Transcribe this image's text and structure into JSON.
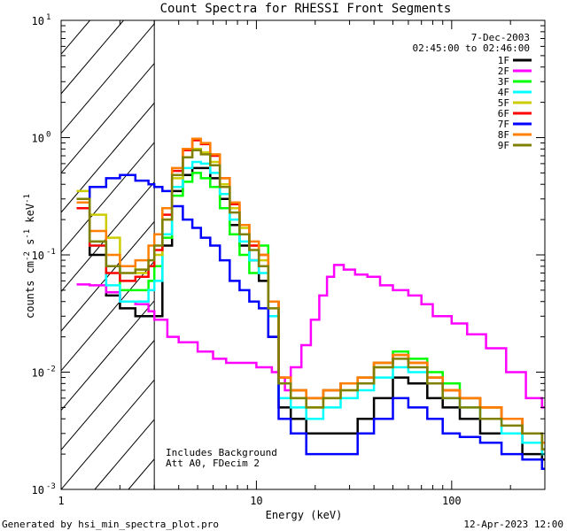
{
  "chart_data": {
    "type": "line",
    "title": "Count Spectra for RHESSI Front Segments",
    "xlabel": "Energy (keV)",
    "ylabel_main": "counts cm",
    "ylabel_exp1": "-2",
    "ylabel_mid": " s",
    "ylabel_exp2": "-1",
    "ylabel_end": " keV",
    "ylabel_exp3": "-1",
    "x_scale": "log",
    "y_scale": "log",
    "xlim": [
      1,
      300
    ],
    "ylim": [
      0.001,
      10
    ],
    "x_ticks": [
      {
        "value": 1,
        "label": "1"
      },
      {
        "value": 10,
        "label": "10"
      },
      {
        "value": 100,
        "label": "100"
      }
    ],
    "y_ticks": [
      {
        "value": 0.001,
        "base": "10",
        "exp": "-3"
      },
      {
        "value": 0.01,
        "base": "10",
        "exp": "-2"
      },
      {
        "value": 0.1,
        "base": "10",
        "exp": "-1"
      },
      {
        "value": 1,
        "base": "10",
        "exp": "0"
      },
      {
        "value": 10,
        "base": "10",
        "exp": "1"
      }
    ],
    "hatched_region": [
      1,
      3
    ],
    "date": "7-Dec-2003",
    "time_range": "02:45:00 to 02:46:00",
    "annotations": [
      "Includes Background",
      "Att A0, FDecim 2"
    ],
    "series": [
      {
        "name": "1F",
        "color": "#000000",
        "x": [
          1.2,
          1.4,
          1.7,
          2.0,
          2.4,
          2.8,
          3.0,
          3.3,
          3.7,
          4.2,
          4.7,
          5.2,
          5.8,
          6.5,
          7.3,
          8.2,
          9.2,
          10.3,
          11.5,
          13,
          15,
          18,
          22,
          27,
          33,
          40,
          50,
          60,
          75,
          90,
          110,
          140,
          180,
          230,
          290
        ],
        "y": [
          0.25,
          0.1,
          0.045,
          0.035,
          0.03,
          0.03,
          0.03,
          0.12,
          0.35,
          0.48,
          0.55,
          0.55,
          0.45,
          0.3,
          0.18,
          0.12,
          0.09,
          0.06,
          0.02,
          0.005,
          0.004,
          0.003,
          0.003,
          0.003,
          0.004,
          0.006,
          0.009,
          0.008,
          0.006,
          0.005,
          0.004,
          0.003,
          0.003,
          0.002,
          0.0018
        ]
      },
      {
        "name": "2F",
        "color": "#ff00ff",
        "x": [
          1.2,
          1.4,
          1.7,
          2.0,
          2.4,
          2.8,
          3.0,
          3.5,
          4.0,
          5,
          6,
          7,
          8,
          9,
          10,
          11,
          12,
          13,
          14,
          15,
          17,
          19,
          21,
          23,
          25,
          28,
          32,
          37,
          43,
          50,
          60,
          70,
          80,
          100,
          120,
          150,
          190,
          240,
          290
        ],
        "y": [
          0.056,
          0.055,
          0.048,
          0.04,
          0.038,
          0.033,
          0.028,
          0.02,
          0.018,
          0.015,
          0.013,
          0.012,
          0.012,
          0.012,
          0.011,
          0.011,
          0.01,
          0.009,
          0.007,
          0.011,
          0.017,
          0.028,
          0.045,
          0.065,
          0.082,
          0.075,
          0.068,
          0.065,
          0.055,
          0.05,
          0.045,
          0.038,
          0.03,
          0.026,
          0.021,
          0.016,
          0.01,
          0.006,
          0.005
        ]
      },
      {
        "name": "3F",
        "color": "#00ff00",
        "x": [
          1.2,
          1.4,
          1.7,
          2.0,
          2.4,
          2.8,
          3.0,
          3.3,
          3.7,
          4.2,
          4.7,
          5.2,
          5.8,
          6.5,
          7.3,
          8.2,
          9.2,
          10.3,
          11.5,
          13,
          15,
          18,
          22,
          27,
          33,
          40,
          50,
          60,
          75,
          90,
          110,
          140,
          180,
          230,
          290
        ],
        "y": [
          0.3,
          0.13,
          0.08,
          0.05,
          0.05,
          0.06,
          0.08,
          0.14,
          0.32,
          0.42,
          0.5,
          0.45,
          0.38,
          0.25,
          0.15,
          0.1,
          0.07,
          0.12,
          0.03,
          0.008,
          0.007,
          0.006,
          0.007,
          0.008,
          0.009,
          0.012,
          0.015,
          0.013,
          0.01,
          0.008,
          0.006,
          0.005,
          0.004,
          0.003,
          0.002
        ]
      },
      {
        "name": "4F",
        "color": "#00ffff",
        "x": [
          1.2,
          1.4,
          1.7,
          2.0,
          2.4,
          2.8,
          3.0,
          3.3,
          3.7,
          4.2,
          4.7,
          5.2,
          5.8,
          6.5,
          7.3,
          8.2,
          9.2,
          10.3,
          11.5,
          13,
          15,
          18,
          22,
          27,
          33,
          40,
          50,
          60,
          75,
          90,
          110,
          140,
          180,
          230,
          290
        ],
        "y": [
          0.28,
          0.12,
          0.055,
          0.04,
          0.04,
          0.05,
          0.06,
          0.15,
          0.38,
          0.55,
          0.62,
          0.6,
          0.5,
          0.33,
          0.2,
          0.13,
          0.09,
          0.07,
          0.03,
          0.006,
          0.005,
          0.004,
          0.005,
          0.006,
          0.007,
          0.009,
          0.011,
          0.01,
          0.008,
          0.006,
          0.005,
          0.004,
          0.003,
          0.0025,
          0.002
        ]
      },
      {
        "name": "5F",
        "color": "#cccc00",
        "x": [
          1.2,
          1.4,
          1.7,
          2.0,
          2.4,
          2.8,
          3.0,
          3.3,
          3.7,
          4.2,
          4.7,
          5.2,
          5.8,
          6.5,
          7.3,
          8.2,
          9.2,
          10.3,
          11.5,
          13,
          15,
          18,
          22,
          27,
          33,
          40,
          50,
          60,
          75,
          90,
          110,
          140,
          180,
          230,
          290
        ],
        "y": [
          0.35,
          0.22,
          0.14,
          0.08,
          0.07,
          0.08,
          0.1,
          0.2,
          0.45,
          0.68,
          0.8,
          0.75,
          0.62,
          0.4,
          0.25,
          0.17,
          0.12,
          0.09,
          0.04,
          0.008,
          0.006,
          0.005,
          0.006,
          0.007,
          0.008,
          0.011,
          0.014,
          0.012,
          0.009,
          0.007,
          0.006,
          0.005,
          0.004,
          0.003,
          0.0025
        ]
      },
      {
        "name": "6F",
        "color": "#ff0000",
        "x": [
          1.2,
          1.4,
          1.7,
          2.0,
          2.4,
          2.8,
          3.0,
          3.3,
          3.7,
          4.2,
          4.7,
          5.2,
          5.8,
          6.5,
          7.3,
          8.2,
          9.2,
          10.3,
          11.5,
          13,
          15,
          18,
          22,
          27,
          33,
          40,
          50,
          60,
          75,
          90,
          110,
          140,
          180,
          230,
          290
        ],
        "y": [
          0.25,
          0.12,
          0.07,
          0.06,
          0.065,
          0.08,
          0.11,
          0.22,
          0.52,
          0.78,
          0.95,
          0.88,
          0.7,
          0.45,
          0.27,
          0.18,
          0.12,
          0.1,
          0.04,
          0.009,
          0.007,
          0.006,
          0.007,
          0.008,
          0.009,
          0.012,
          0.014,
          0.012,
          0.009,
          0.007,
          0.006,
          0.005,
          0.004,
          0.003,
          0.0025
        ]
      },
      {
        "name": "7F",
        "color": "#0000ff",
        "x": [
          1.2,
          1.4,
          1.7,
          2.0,
          2.4,
          2.8,
          3.0,
          3.3,
          3.7,
          4.2,
          4.7,
          5.2,
          5.8,
          6.5,
          7.3,
          8.2,
          9.2,
          10.3,
          11.5,
          13,
          15,
          18,
          22,
          27,
          33,
          40,
          50,
          60,
          75,
          90,
          110,
          140,
          180,
          230,
          290
        ],
        "y": [
          0.3,
          0.38,
          0.45,
          0.48,
          0.43,
          0.4,
          0.38,
          0.35,
          0.26,
          0.2,
          0.17,
          0.14,
          0.12,
          0.09,
          0.06,
          0.05,
          0.04,
          0.035,
          0.02,
          0.004,
          0.003,
          0.002,
          0.002,
          0.002,
          0.003,
          0.004,
          0.006,
          0.005,
          0.004,
          0.003,
          0.0028,
          0.0025,
          0.002,
          0.0018,
          0.0015
        ]
      },
      {
        "name": "8F",
        "color": "#ff8000",
        "x": [
          1.2,
          1.4,
          1.7,
          2.0,
          2.4,
          2.8,
          3.0,
          3.3,
          3.7,
          4.2,
          4.7,
          5.2,
          5.8,
          6.5,
          7.3,
          8.2,
          9.2,
          10.3,
          11.5,
          13,
          15,
          18,
          22,
          27,
          33,
          40,
          50,
          60,
          75,
          90,
          110,
          140,
          180,
          230,
          290
        ],
        "y": [
          0.28,
          0.16,
          0.1,
          0.08,
          0.09,
          0.12,
          0.15,
          0.25,
          0.55,
          0.8,
          0.98,
          0.9,
          0.72,
          0.45,
          0.28,
          0.18,
          0.13,
          0.1,
          0.04,
          0.009,
          0.007,
          0.006,
          0.007,
          0.008,
          0.009,
          0.012,
          0.014,
          0.012,
          0.009,
          0.007,
          0.006,
          0.005,
          0.004,
          0.003,
          0.0025
        ]
      },
      {
        "name": "9F",
        "color": "#808000",
        "x": [
          1.2,
          1.4,
          1.7,
          2.0,
          2.4,
          2.8,
          3.0,
          3.3,
          3.7,
          4.2,
          4.7,
          5.2,
          5.8,
          6.5,
          7.3,
          8.2,
          9.2,
          10.3,
          11.5,
          13,
          15,
          18,
          22,
          27,
          33,
          40,
          50,
          60,
          75,
          90,
          110,
          140,
          180,
          230,
          290
        ],
        "y": [
          0.3,
          0.13,
          0.08,
          0.07,
          0.075,
          0.09,
          0.12,
          0.2,
          0.48,
          0.68,
          0.78,
          0.72,
          0.58,
          0.38,
          0.23,
          0.15,
          0.11,
          0.08,
          0.035,
          0.008,
          0.006,
          0.005,
          0.006,
          0.007,
          0.008,
          0.011,
          0.013,
          0.011,
          0.008,
          0.006,
          0.005,
          0.004,
          0.0035,
          0.003,
          0.0022
        ]
      }
    ]
  },
  "footer": {
    "generated_by": "Generated by hsi_min_spectra_plot.pro",
    "timestamp": "12-Apr-2023 12:00"
  }
}
